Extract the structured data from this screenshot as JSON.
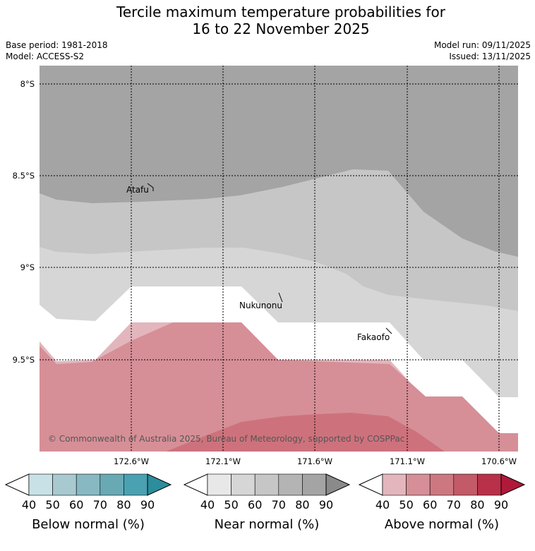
{
  "title_line1": "Tercile maximum temperature probabilities for",
  "title_line2": "16 to 22 November 2025",
  "base_period": "Base period: 1981-2018",
  "model": "Model: ACCESS-S2",
  "model_run": "Model run: 09/11/2025",
  "issued": "Issued: 13/11/2025",
  "latitudes": [
    "8°S",
    "8.5°S",
    "9°S",
    "9.5°S"
  ],
  "longitudes": [
    "172.6°W",
    "172.1°W",
    "171.6°W",
    "171.1°W",
    "170.6°W"
  ],
  "places": [
    "Atafu",
    "Nukunonu",
    "Fakaofo"
  ],
  "copyright": "© Commonwealth of Australia 2025, Bureau of Meteorology, supported by COSPPac",
  "colorbars": [
    {
      "name": "Below normal (%)",
      "ticks": [
        "40",
        "50",
        "60",
        "70",
        "80",
        "90"
      ],
      "colors": [
        "#ffffff",
        "#c8e1e6",
        "#a8c9cf",
        "#88b8c2",
        "#69a9b4",
        "#4aa1b2",
        "#2c8d9c"
      ]
    },
    {
      "name": "Near normal (%)",
      "ticks": [
        "40",
        "50",
        "60",
        "70",
        "80",
        "90"
      ],
      "colors": [
        "#ffffff",
        "#e8e8e8",
        "#d6d6d6",
        "#c6c6c6",
        "#b4b4b4",
        "#a4a4a4",
        "#8a8a8a"
      ]
    },
    {
      "name": "Above normal (%)",
      "ticks": [
        "40",
        "50",
        "60",
        "70",
        "80",
        "90"
      ],
      "colors": [
        "#ffffff",
        "#e2b6bc",
        "#d68f97",
        "#cd7880",
        "#c35a68",
        "#b93049",
        "#b0193a"
      ]
    }
  ]
}
